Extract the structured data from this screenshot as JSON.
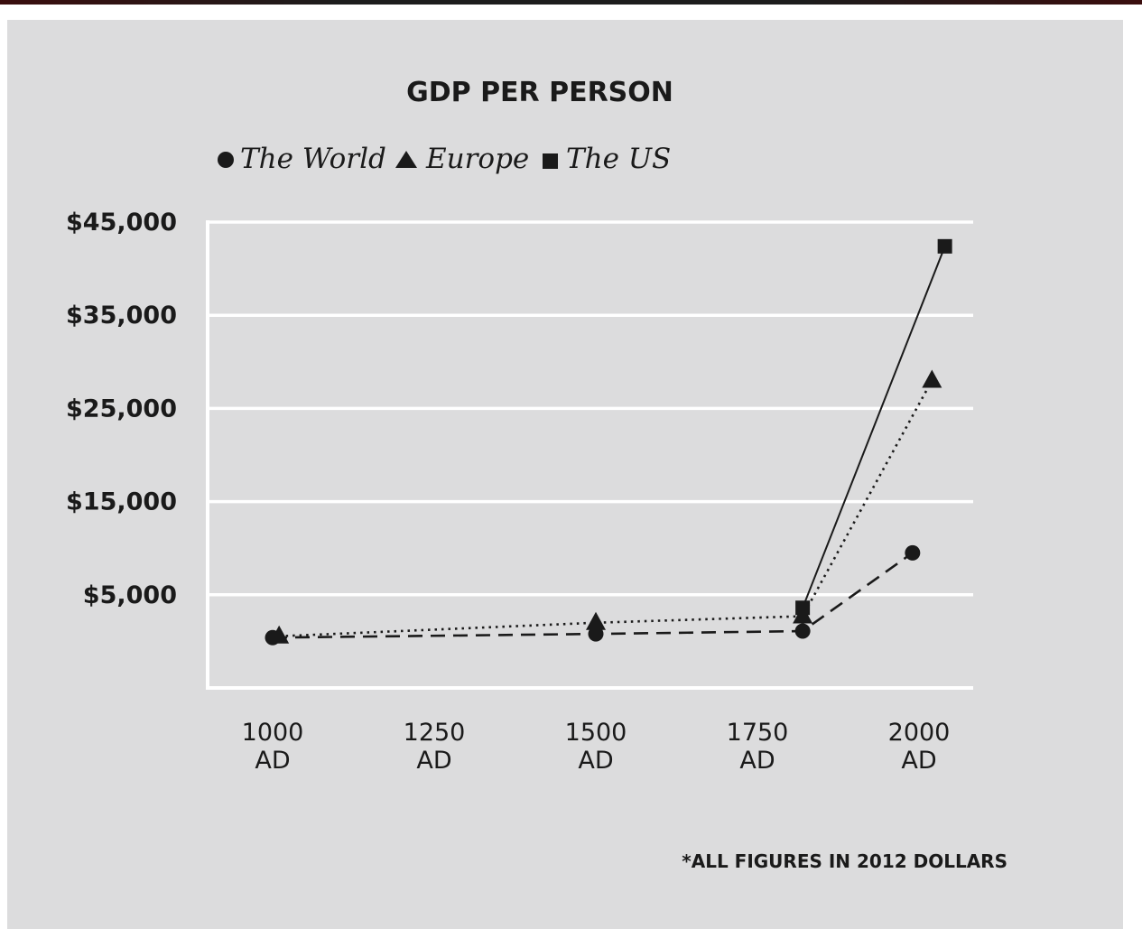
{
  "chart_data": {
    "type": "line",
    "title": "GDP PER PERSON",
    "footnote": "*ALL FIGURES IN 2012 DOLLARS",
    "legend_placement": "top",
    "grid": true,
    "x_ticks": [
      {
        "value": 1000,
        "line1": "1000",
        "line2": "AD"
      },
      {
        "value": 1250,
        "line1": "1250",
        "line2": "AD"
      },
      {
        "value": 1500,
        "line1": "1500",
        "line2": "AD"
      },
      {
        "value": 1750,
        "line1": "1750",
        "line2": "AD"
      },
      {
        "value": 2000,
        "line1": "2000",
        "line2": "AD"
      }
    ],
    "y_ticks": [
      {
        "value": 5000,
        "label": "$5,000"
      },
      {
        "value": 15000,
        "label": "$15,000"
      },
      {
        "value": 25000,
        "label": "$25,000"
      },
      {
        "value": 35000,
        "label": "$35,000"
      },
      {
        "value": 45000,
        "label": "$45,000"
      }
    ],
    "xlim": [
      1000,
      2000
    ],
    "ylim": [
      -5000,
      45000
    ],
    "series": [
      {
        "name": "The World",
        "marker": "circle",
        "dash": "dashed",
        "points": [
          {
            "x": 1000,
            "y": 400
          },
          {
            "x": 1500,
            "y": 800
          },
          {
            "x": 1820,
            "y": 1100
          },
          {
            "x": 1990,
            "y": 9500
          }
        ]
      },
      {
        "name": "Europe",
        "marker": "triangle",
        "dash": "dotted",
        "points": [
          {
            "x": 1010,
            "y": 550
          },
          {
            "x": 1500,
            "y": 2000
          },
          {
            "x": 1820,
            "y": 2700
          },
          {
            "x": 2020,
            "y": 28000
          }
        ]
      },
      {
        "name": "The US",
        "marker": "square",
        "dash": "solid",
        "points": [
          {
            "x": 1820,
            "y": 3600
          },
          {
            "x": 2040,
            "y": 42400
          }
        ]
      }
    ],
    "colors": {
      "panel": "#dcdcdd",
      "ink": "#1a1a1a",
      "grid": "#ffffff"
    }
  }
}
